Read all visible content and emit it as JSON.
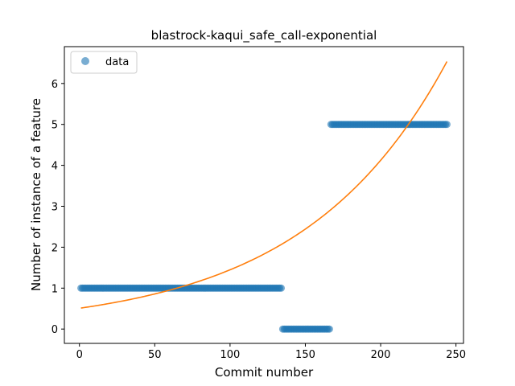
{
  "chart_data": {
    "type": "scatter",
    "title": "blastrock-kaqui_safe_call-exponential",
    "xlabel": "Commit number",
    "ylabel": "Number of instance of a feature",
    "xlim": [
      -10,
      255
    ],
    "ylim": [
      -0.35,
      6.9
    ],
    "xticks": [
      0,
      50,
      100,
      150,
      200,
      250
    ],
    "yticks": [
      0,
      1,
      2,
      3,
      4,
      5,
      6
    ],
    "grid": false,
    "legend_position": "top-left",
    "colors": {
      "data": "#1f77b4",
      "fit": "#ff7f0e"
    },
    "series": [
      {
        "name": "data",
        "kind": "scatter",
        "segments": [
          {
            "x_start": 1,
            "x_end": 134,
            "y": 1
          },
          {
            "x_start": 135,
            "x_end": 166,
            "y": 0
          },
          {
            "x_start": 167,
            "x_end": 244,
            "y": 5
          }
        ]
      },
      {
        "kind": "line",
        "model": "exponential",
        "a": 0.508,
        "b": 0.01047,
        "x_range": [
          1,
          244
        ]
      }
    ]
  }
}
